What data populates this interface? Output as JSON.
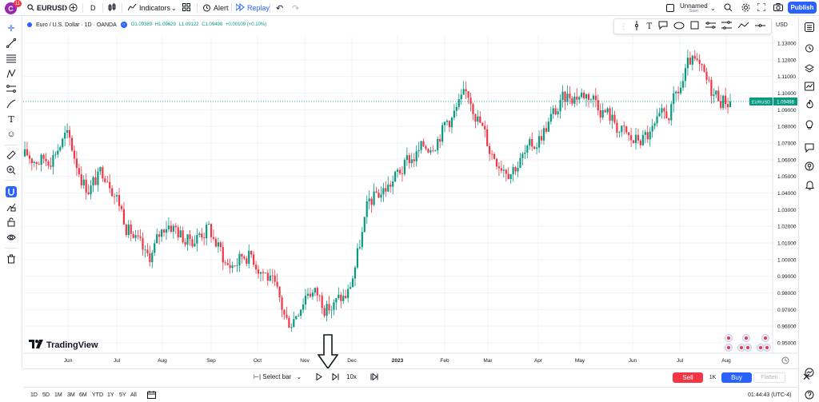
{
  "topbar": {
    "avatar_letter": "C",
    "avatar_badge": "11",
    "symbol": "EURUSD",
    "interval": "D",
    "indicators": "Indicators",
    "alert": "Alert",
    "replay": "Replay",
    "layout_name": "Unnamed",
    "layout_status": "Save",
    "publish": "Publish"
  },
  "chart": {
    "title": "Euro / U.S. Dollar · 1D · OANDA",
    "ohlc": {
      "o": "O1.09389",
      "h": "H1.09629",
      "l": "L1.09122",
      "c": "C1.09498",
      "change": "+0.00109 (+0.10%)"
    },
    "currency": "USD",
    "last_price_label": "EURUSD",
    "last_price": "1.09498",
    "last_value": 1.09498,
    "watermark": "TradingView"
  },
  "chart_data": {
    "type": "candlestick",
    "ylim": [
      0.945,
      1.135
    ],
    "y_ticks": [
      "1.13000",
      "1.12000",
      "1.11000",
      "1.10000",
      "1.09000",
      "1.08000",
      "1.07000",
      "1.06000",
      "1.05000",
      "1.04000",
      "1.03000",
      "1.02000",
      "1.01000",
      "1.00000",
      "0.99000",
      "0.98000",
      "0.97000",
      "0.96000",
      "0.95000"
    ],
    "x_ticks": [
      "Jun",
      "Jul",
      "Aug",
      "Sep",
      "Oct",
      "Nov",
      "Dec",
      "2023",
      "Feb",
      "Mar",
      "Apr",
      "May",
      "Jun",
      "Jul",
      "Aug"
    ],
    "trend": [
      [
        "May '22",
        1.062
      ],
      [
        "Jun",
        1.06
      ],
      [
        "Jun",
        1.075
      ],
      [
        "Jun",
        1.042
      ],
      [
        "Jul",
        1.055
      ],
      [
        "Jul",
        1.02
      ],
      [
        "Jul",
        0.998
      ],
      [
        "Aug",
        1.025
      ],
      [
        "Aug",
        1.01
      ],
      [
        "Aug",
        1.02
      ],
      [
        "Sep",
        0.995
      ],
      [
        "Sep",
        1.005
      ],
      [
        "Sep",
        0.99
      ],
      [
        "Oct",
        0.96
      ],
      [
        "Oct",
        0.985
      ],
      [
        "Oct",
        0.97
      ],
      [
        "Nov",
        0.98
      ],
      [
        "Nov",
        1.035
      ],
      [
        "Dec",
        1.045
      ],
      [
        "Dec",
        1.06
      ],
      [
        "Jan '23",
        1.07
      ],
      [
        "Jan",
        1.085
      ],
      [
        "Feb",
        1.1
      ],
      [
        "Feb",
        1.065
      ],
      [
        "Mar",
        1.055
      ],
      [
        "Mar",
        1.065
      ],
      [
        "Apr",
        1.085
      ],
      [
        "Apr",
        1.1
      ],
      [
        "May",
        1.1
      ],
      [
        "May",
        1.085
      ],
      [
        "Jun",
        1.07
      ],
      [
        "Jun",
        1.075
      ],
      [
        "Jul",
        1.09
      ],
      [
        "Jul",
        1.12
      ],
      [
        "Jul",
        1.1
      ],
      [
        "Aug",
        1.095
      ]
    ]
  },
  "tradebar": {
    "select_bar": "Select bar",
    "speed": "10x",
    "sell": "Sell",
    "quantity": "1K",
    "buy": "Buy",
    "flatten": "Flatten"
  },
  "rangebar": {
    "ranges": [
      "1D",
      "5D",
      "1M",
      "3M",
      "6M",
      "YTD",
      "1Y",
      "5Y",
      "All"
    ],
    "clock": "01:44:43 (UTC-4)"
  },
  "colors": {
    "up": "#089981",
    "down": "#f23645",
    "accent": "#2962ff"
  }
}
